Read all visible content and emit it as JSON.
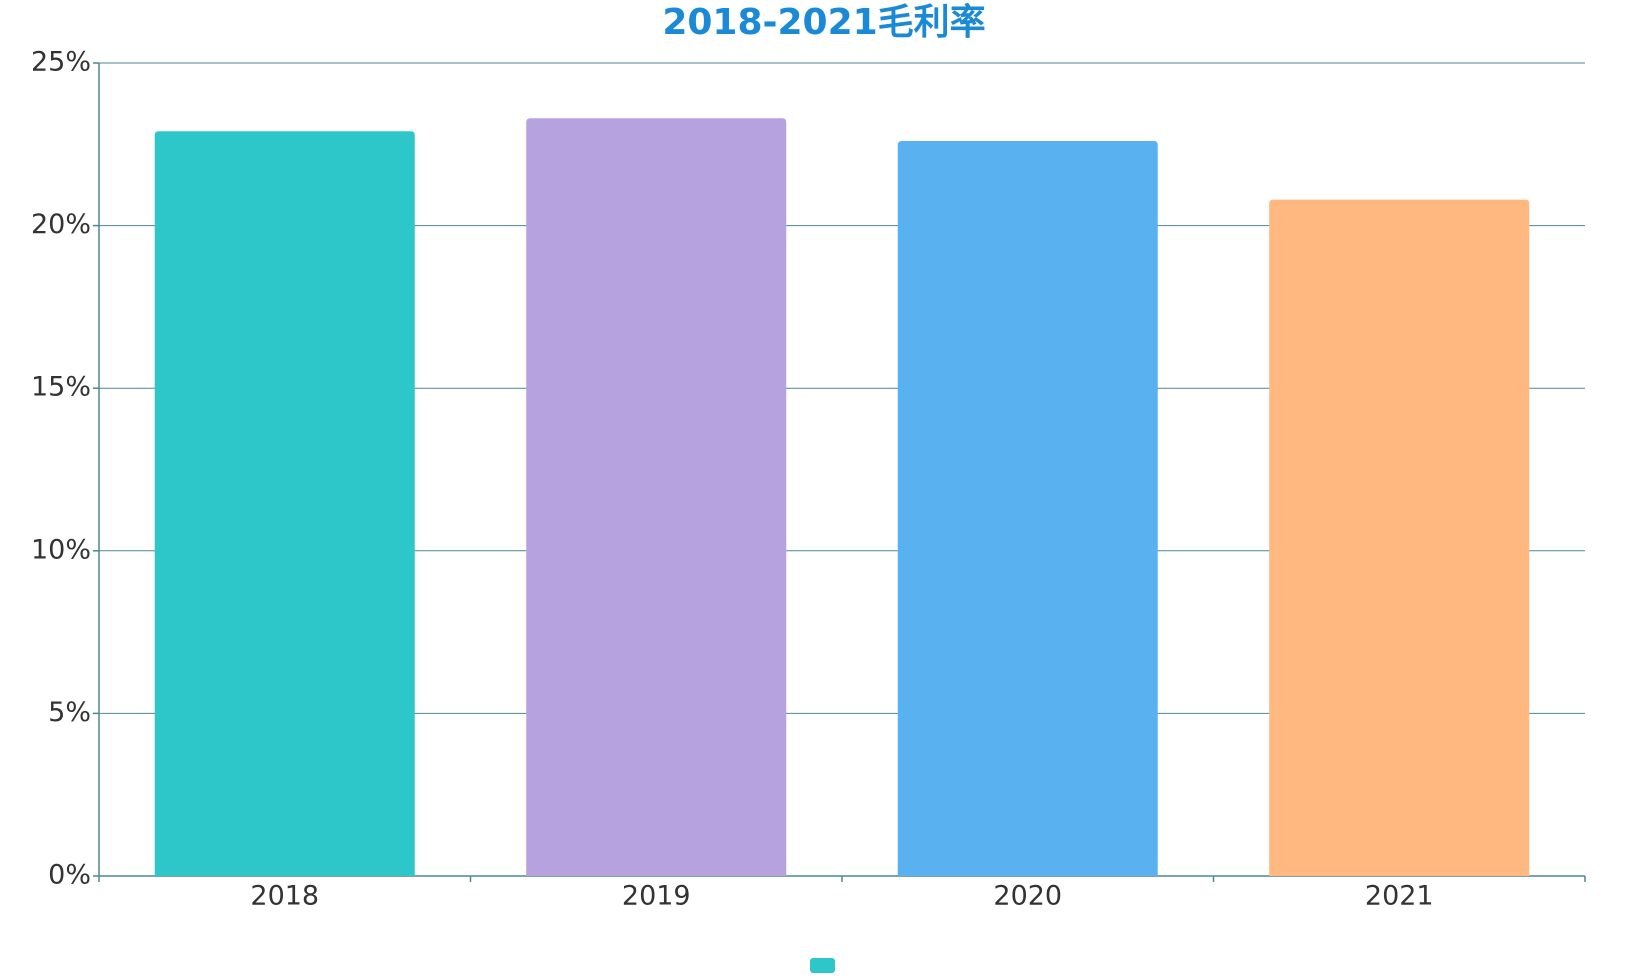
{
  "chart_data": {
    "type": "bar",
    "title": "2018-2021毛利率",
    "categories": [
      "2018",
      "2019",
      "2020",
      "2021"
    ],
    "values": [
      22.9,
      23.3,
      22.6,
      20.8
    ],
    "colors": [
      "#2ec7c9",
      "#b6a2de",
      "#5ab1ef",
      "#ffb980"
    ],
    "ylim": [
      0,
      25
    ],
    "yticks": [
      {
        "value": 0,
        "label": "0%"
      },
      {
        "value": 5,
        "label": "5%"
      },
      {
        "value": 10,
        "label": "10%"
      },
      {
        "value": 15,
        "label": "15%"
      },
      {
        "value": 20,
        "label": "20%"
      },
      {
        "value": 25,
        "label": "25%"
      }
    ],
    "grid": true
  }
}
